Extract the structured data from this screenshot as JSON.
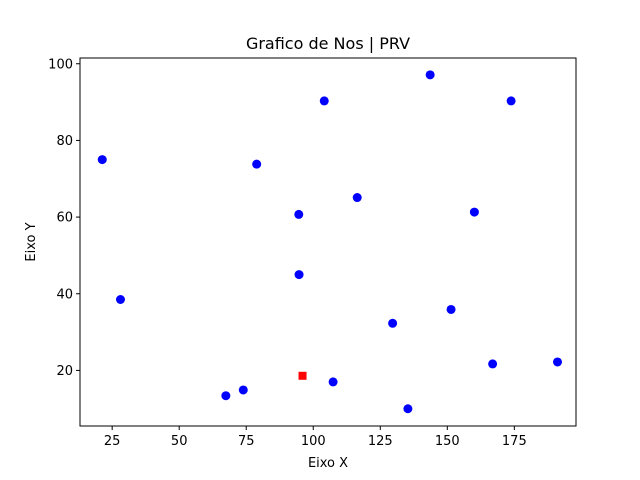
{
  "chart_data": {
    "type": "scatter",
    "title": "Grafico de Nos | PRV",
    "xlabel": "Eixo X",
    "ylabel": "Eixo Y",
    "xlim": [
      13,
      198
    ],
    "ylim": [
      5.5,
      101.5
    ],
    "xticks": [
      25,
      50,
      75,
      100,
      125,
      150,
      175
    ],
    "yticks": [
      20,
      40,
      60,
      80,
      100
    ],
    "grid": false,
    "series": [
      {
        "marker": "circle",
        "color": "#0000ff",
        "x": [
          21.3,
          28.1,
          67.4,
          73.9,
          78.9,
          94.6,
          94.7,
          104.1,
          107.4,
          116.4,
          129.6,
          135.3,
          143.6,
          151.4,
          160.1,
          166.9,
          173.8,
          191.1
        ],
        "y": [
          75.0,
          38.5,
          13.4,
          14.9,
          73.8,
          60.7,
          45.0,
          90.3,
          17.0,
          65.1,
          32.3,
          10.0,
          97.1,
          35.9,
          61.3,
          21.7,
          90.3,
          22.2
        ]
      },
      {
        "marker": "square",
        "color": "#ff0000",
        "x": [
          96.0
        ],
        "y": [
          18.6
        ]
      }
    ]
  }
}
